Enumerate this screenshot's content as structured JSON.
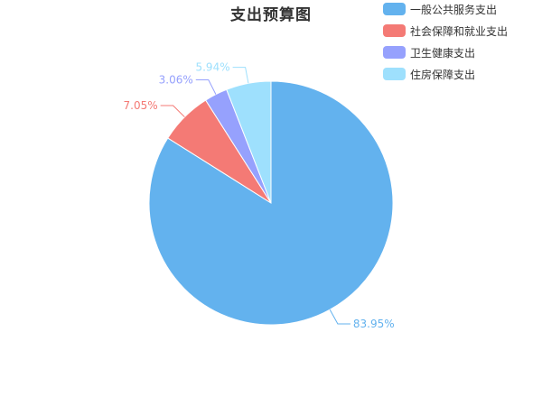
{
  "chart_data": {
    "type": "pie",
    "title": "支出预算图",
    "legend_position": "top-right",
    "slices": [
      {
        "name": "一般公共服务支出",
        "value": 83.95,
        "label": "83.95%",
        "color": "#63b2ee"
      },
      {
        "name": "社会保障和就业支出",
        "value": 7.05,
        "label": "7.05%",
        "color": "#f47a75"
      },
      {
        "name": "卫生健康支出",
        "value": 3.06,
        "label": "3.06%",
        "color": "#96a1fd"
      },
      {
        "name": "住房保障支出",
        "value": 5.94,
        "label": "5.94%",
        "color": "#9ee0fd"
      }
    ]
  }
}
